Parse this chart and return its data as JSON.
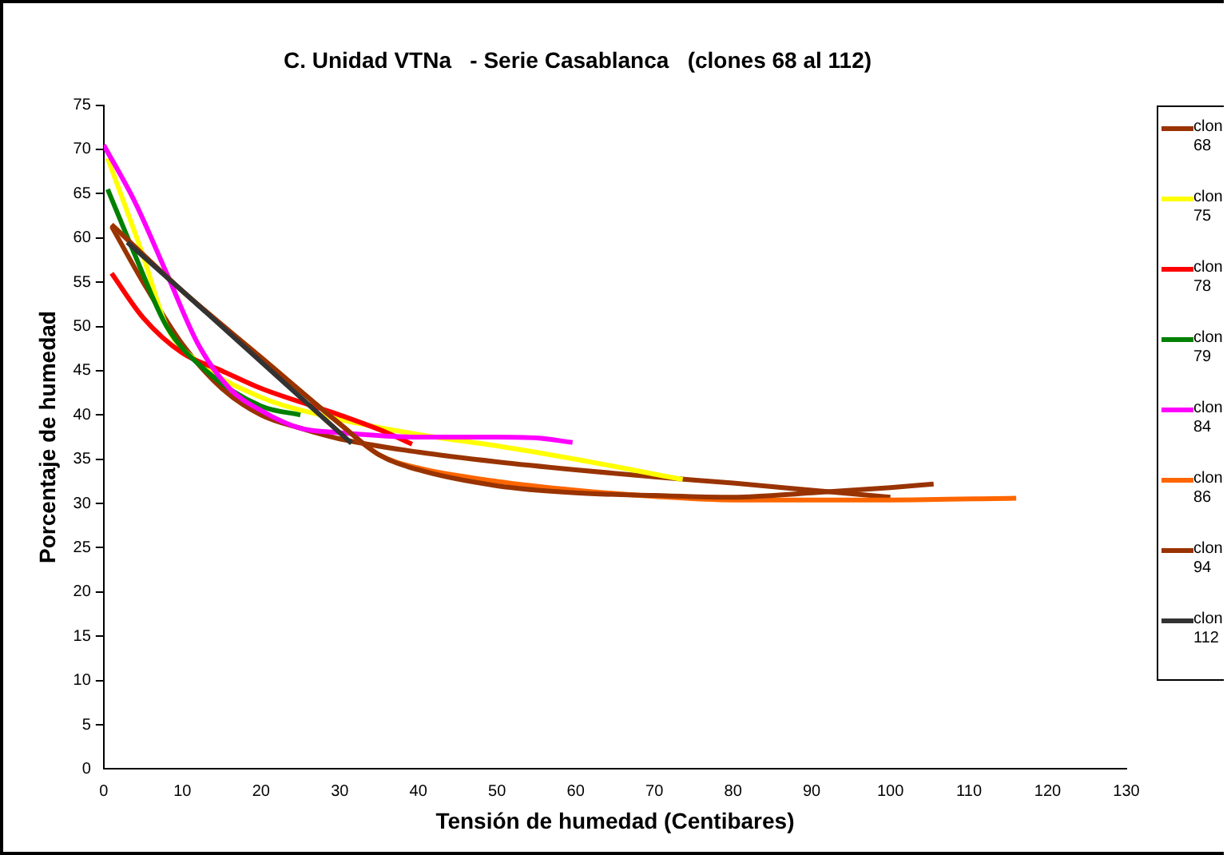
{
  "chart_data": {
    "type": "line",
    "title": "C. Unidad VTNa   - Serie Casablanca   (clones 68 al 112)",
    "xlabel": "Tensión de humedad (Centibares)",
    "ylabel": "Porcentaje de humedad",
    "xlim": [
      0,
      130
    ],
    "xticks": [
      0,
      10,
      20,
      30,
      40,
      50,
      60,
      70,
      80,
      90,
      100,
      110,
      120,
      130
    ],
    "ylim": [
      0,
      75
    ],
    "yticks": [
      0,
      5,
      10,
      15,
      20,
      25,
      30,
      35,
      40,
      45,
      50,
      55,
      60,
      65,
      70,
      75
    ],
    "grid": false,
    "legend": "right",
    "marker": "none",
    "line_style": "solid",
    "series": [
      {
        "name": "clon 68",
        "color": "#993300",
        "x": [
          1,
          5,
          10,
          15,
          20,
          25,
          30,
          40,
          50,
          60,
          70,
          80,
          90,
          100
        ],
        "values": [
          61.3,
          55,
          48,
          43,
          40,
          38.5,
          37.3,
          35.8,
          34.7,
          33.8,
          33,
          32.3,
          31.5,
          30.7
        ]
      },
      {
        "name": "clon 75",
        "color": "#ffff00",
        "x": [
          0.5,
          5,
          8,
          12,
          20,
          30,
          40,
          50,
          60,
          73.6
        ],
        "values": [
          69,
          58,
          50,
          46,
          42,
          39.5,
          37.8,
          36.5,
          35,
          32.7
        ]
      },
      {
        "name": "clon 78",
        "color": "#ff0000",
        "x": [
          1,
          5,
          10,
          15,
          20,
          30,
          36,
          39.2
        ],
        "values": [
          56,
          51,
          47,
          45,
          43,
          40,
          38,
          36.7
        ]
      },
      {
        "name": "clon 79",
        "color": "#008000",
        "x": [
          0.5,
          4,
          8,
          13,
          20,
          25
        ],
        "values": [
          65.5,
          58,
          50,
          45,
          41,
          40
        ]
      },
      {
        "name": "clon 84",
        "color": "#ff00ff",
        "x": [
          0,
          4,
          8,
          12,
          16,
          20,
          25,
          30,
          40,
          50,
          55,
          59.6
        ],
        "values": [
          70.5,
          64,
          56,
          48,
          43,
          40.5,
          38.5,
          38,
          37.5,
          37.5,
          37.4,
          36.9
        ]
      },
      {
        "name": "clon 86",
        "color": "#ff6600",
        "x": [
          1,
          10,
          20,
          30,
          35,
          40,
          50,
          60,
          70,
          80,
          100,
          116
        ],
        "values": [
          61.5,
          54,
          46.5,
          39,
          35.5,
          34,
          32.5,
          31.5,
          30.8,
          30.4,
          30.4,
          30.6
        ]
      },
      {
        "name": "clon 94",
        "color": "#993300",
        "x": [
          1,
          10,
          20,
          30,
          35,
          40,
          50,
          60,
          70,
          80,
          90,
          100,
          105.5
        ],
        "values": [
          61.5,
          54,
          46.5,
          39,
          35.5,
          33.8,
          32,
          31.2,
          30.9,
          30.7,
          31.2,
          31.8,
          32.2
        ]
      },
      {
        "name": "clon 112",
        "color": "#333333",
        "x": [
          3,
          10,
          20,
          31.5
        ],
        "values": [
          59.5,
          54,
          46,
          36.8
        ]
      }
    ]
  }
}
